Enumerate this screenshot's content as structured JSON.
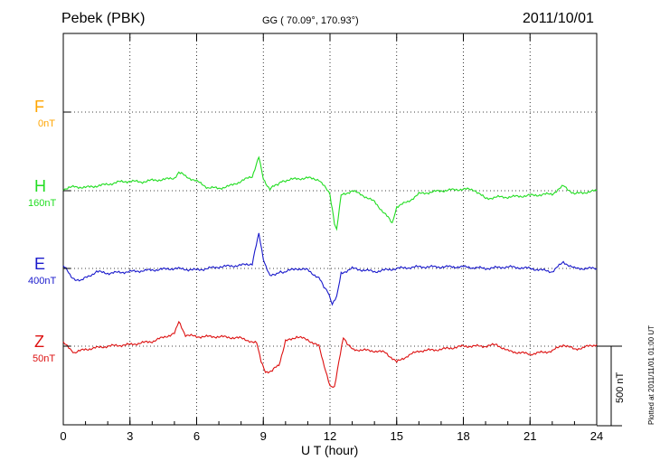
{
  "header": {
    "station": "Pebek (PBK)",
    "coords": "GG ( 70.09°, 170.93°)",
    "date": "2011/10/01"
  },
  "chart_data": {
    "type": "line",
    "xlabel": "U T (hour)",
    "xlim": [
      0,
      24
    ],
    "xticks": [
      0,
      3,
      6,
      9,
      12,
      15,
      18,
      21,
      24
    ],
    "xtick_labels": [
      "0",
      "3",
      "6",
      "9",
      "12",
      "15",
      "18",
      "21",
      "24"
    ],
    "grid": true,
    "scale_bar": {
      "label": "500 nT",
      "value_nT": 500
    },
    "plotted_note": "Plotted at 2011/11/01 01:00 UT",
    "series": [
      {
        "name": "F",
        "baseline_label": "0nT",
        "color": "#ffa500",
        "x": [],
        "y": []
      },
      {
        "name": "H",
        "baseline_label": "160nT",
        "color": "#22dd22",
        "x": [
          0,
          0.5,
          1,
          1.5,
          2,
          2.5,
          3,
          3.5,
          4,
          4.5,
          5,
          5.2,
          5.5,
          6,
          6.5,
          7,
          7.5,
          8,
          8.5,
          8.8,
          9,
          9.3,
          9.6,
          10,
          10.5,
          11,
          11.5,
          12,
          12.1,
          12.2,
          12.3,
          12.5,
          13,
          13.5,
          14,
          14.5,
          14.8,
          15,
          15.5,
          16,
          17,
          18,
          18.5,
          19,
          19.5,
          20,
          21,
          22,
          22.5,
          23,
          24
        ],
        "y": [
          10,
          25,
          20,
          30,
          40,
          55,
          60,
          55,
          65,
          70,
          80,
          120,
          90,
          60,
          20,
          15,
          30,
          60,
          90,
          210,
          70,
          10,
          40,
          65,
          75,
          80,
          70,
          -20,
          -120,
          -200,
          -250,
          -30,
          0,
          -30,
          -70,
          -150,
          -200,
          -100,
          -70,
          -20,
          0,
          10,
          5,
          -50,
          -40,
          -40,
          -30,
          -20,
          30,
          -20,
          0
        ]
      },
      {
        "name": "E",
        "baseline_label": "400nT",
        "color": "#1a1acc",
        "x": [
          0,
          0.3,
          0.6,
          1,
          1.5,
          2,
          3,
          4,
          5,
          6,
          7,
          8,
          8.5,
          8.8,
          9,
          9.3,
          9.6,
          10,
          10.5,
          11,
          11.5,
          11.9,
          12.1,
          12.3,
          12.5,
          13,
          14,
          15,
          16,
          17,
          18,
          19,
          20,
          21,
          22,
          22.5,
          23,
          24
        ],
        "y": [
          20,
          -40,
          -80,
          -60,
          -20,
          -30,
          -20,
          -10,
          0,
          -10,
          10,
          20,
          30,
          220,
          60,
          -50,
          -30,
          -20,
          0,
          -10,
          -60,
          -150,
          -230,
          -180,
          -30,
          0,
          -20,
          0,
          10,
          10,
          10,
          0,
          10,
          0,
          -20,
          40,
          0,
          0
        ]
      },
      {
        "name": "Z",
        "baseline_label": "50nT",
        "color": "#dd1111",
        "x": [
          0,
          0.5,
          1,
          1.5,
          2,
          3,
          4,
          5,
          5.2,
          5.5,
          6,
          7,
          8,
          8.7,
          8.9,
          9.1,
          9.4,
          9.7,
          10,
          10.5,
          11,
          11.5,
          11.8,
          12,
          12.2,
          12.4,
          12.6,
          13,
          14,
          14.5,
          15,
          15.5,
          16,
          17,
          18,
          19,
          19.5,
          20,
          21,
          22,
          22.5,
          23,
          24
        ],
        "y": [
          20,
          -40,
          -20,
          -10,
          0,
          10,
          30,
          80,
          150,
          70,
          60,
          60,
          50,
          20,
          -100,
          -170,
          -150,
          -120,
          30,
          60,
          40,
          0,
          -150,
          -250,
          -260,
          -100,
          50,
          -20,
          -30,
          -40,
          -100,
          -60,
          -30,
          -20,
          0,
          0,
          10,
          -30,
          -50,
          -30,
          10,
          -20,
          10
        ]
      }
    ]
  }
}
